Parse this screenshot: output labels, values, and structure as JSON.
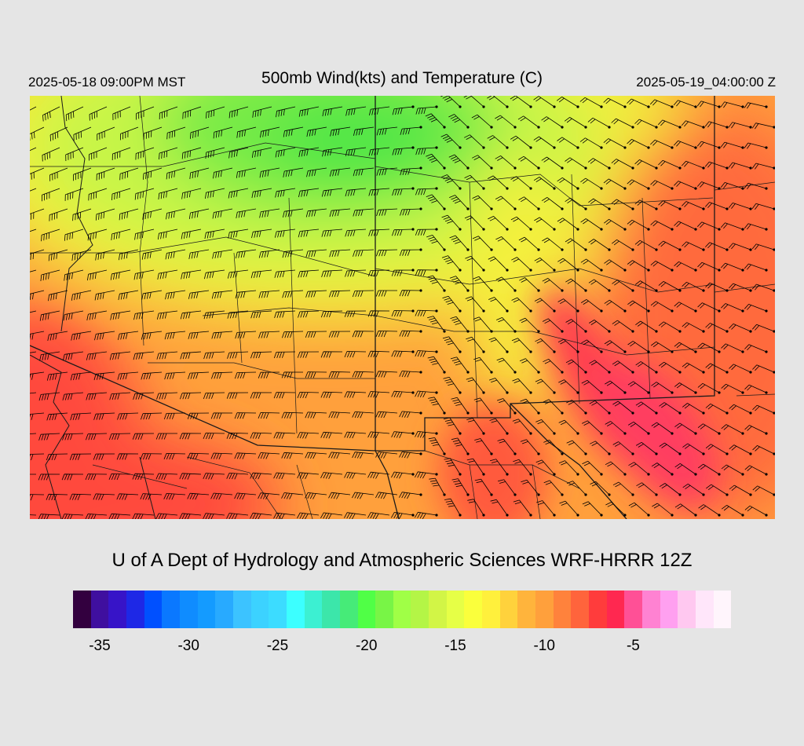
{
  "header": {
    "valid_local": "2025-05-18 09:00PM MST",
    "title": "500mb Wind(kts) and Temperature (C)",
    "valid_utc": "2025-05-19_04:00:00 Z"
  },
  "footer": {
    "source": "U of A Dept of Hydrology and Atmospheric Sciences WRF-HRRR 12Z"
  },
  "colorbar": {
    "min": -36,
    "max": 0,
    "step": 1,
    "colors": [
      "#33003f",
      "#3f0f9f",
      "#3714c8",
      "#1e28e6",
      "#0050ff",
      "#0a78ff",
      "#0f8cff",
      "#149bff",
      "#28aaff",
      "#3cc3ff",
      "#3cd2ff",
      "#3cdcff",
      "#3cffff",
      "#3cf0d2",
      "#3ce6aa",
      "#46eb78",
      "#50ff46",
      "#78f546",
      "#a0ff46",
      "#b4f546",
      "#d2f546",
      "#e6ff46",
      "#faff3c",
      "#fff03c",
      "#ffd23c",
      "#ffb43c",
      "#ffa03c",
      "#ff823c",
      "#ff643c",
      "#ff3c3c",
      "#ff2850",
      "#ff5096",
      "#ff82d2",
      "#ffa0f0",
      "#ffc8f0",
      "#ffe6fa",
      "#fff5fc"
    ],
    "tick_values": [
      -35,
      -30,
      -25,
      -20,
      -15,
      -10,
      -5
    ],
    "tick_labels": [
      "-35",
      "-30",
      "-25",
      "-20",
      "-15",
      "-10",
      "-5"
    ]
  },
  "map": {
    "region": "Arizona, New Mexico, Utah, Colorado and surrounding areas",
    "field_colors": {
      "cold_core": "#5ae646",
      "cool": "#b4f546",
      "mid": "#f5f03c",
      "warm": "#ffa03c",
      "hot": "#ff5a3c",
      "hottest": "#ff3c50"
    },
    "barb_color": "#000000",
    "boundary_color": "#1a1a1a"
  }
}
